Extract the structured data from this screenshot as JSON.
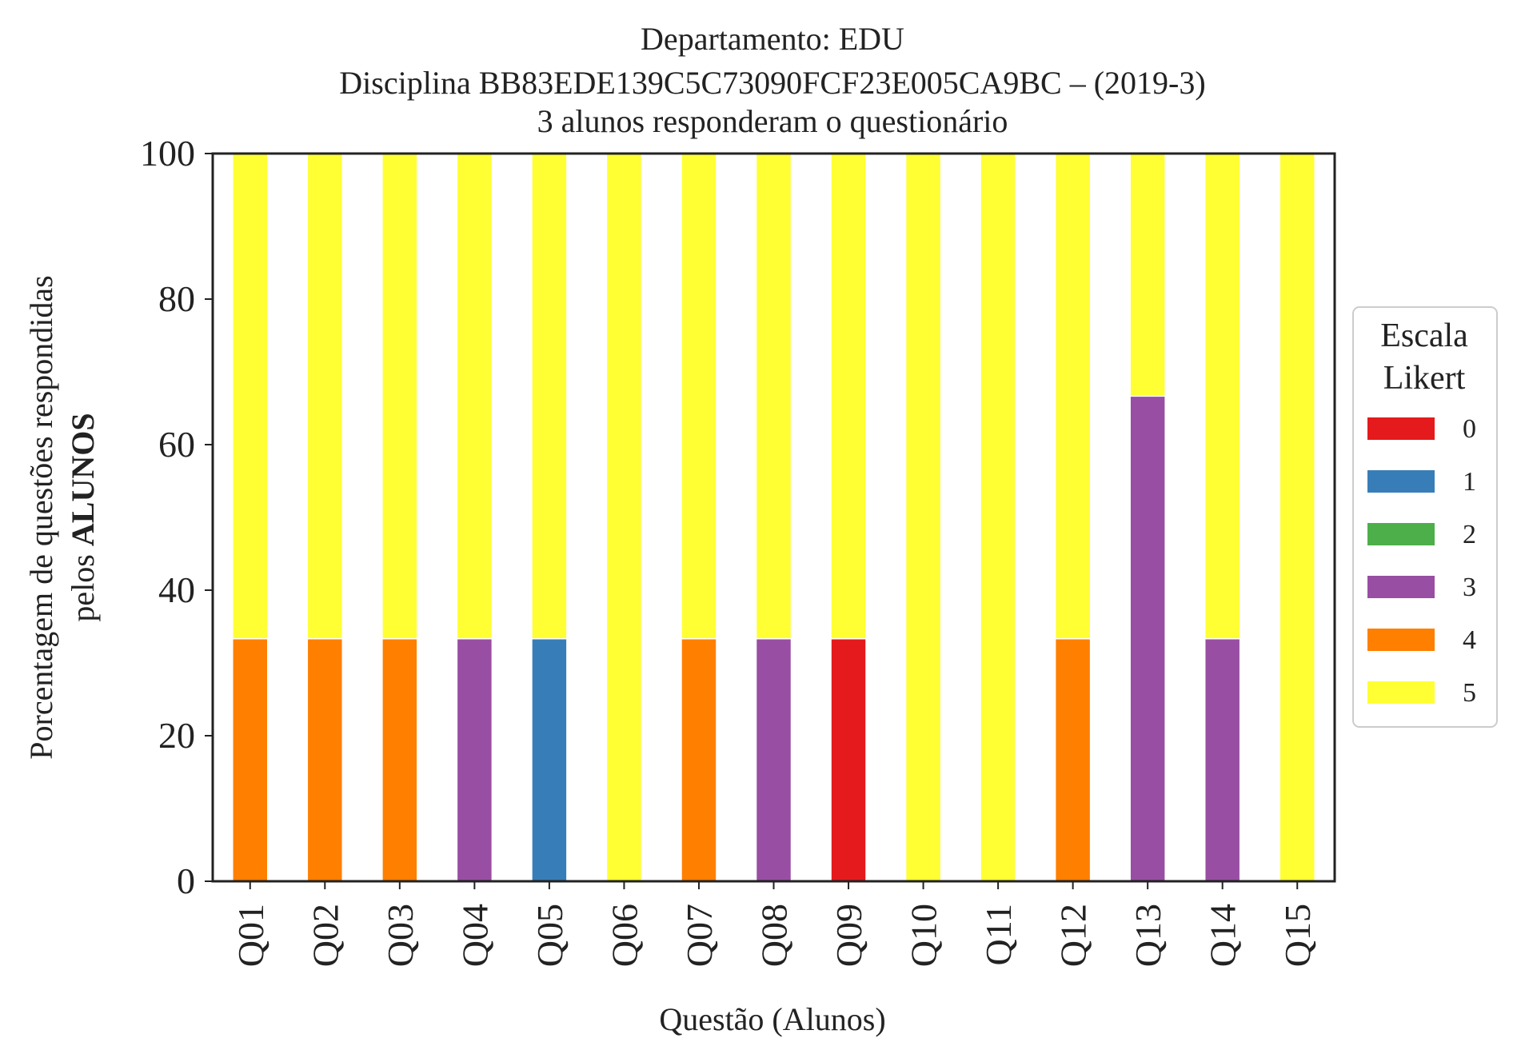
{
  "chart_data": {
    "type": "bar",
    "stacked": true,
    "title": [
      "Departamento: EDU",
      "Disciplina BB83EDE139C5C73090FCF23E005CA9BC – (2019-3)",
      "3 alunos responderam o questionário"
    ],
    "xlabel": "Questão (Alunos)",
    "ylabel": {
      "line1": "Porcentagem de questões respondidas",
      "line2_prefix": "pelos ",
      "line2_bold": "ALUNOS"
    },
    "ylim": [
      0,
      100
    ],
    "yticks": [
      "0",
      "20",
      "40",
      "60",
      "80",
      "100"
    ],
    "grid": false,
    "categories": [
      "Q01",
      "Q02",
      "Q03",
      "Q04",
      "Q05",
      "Q06",
      "Q07",
      "Q08",
      "Q09",
      "Q10",
      "Q11",
      "Q12",
      "Q13",
      "Q14",
      "Q15"
    ],
    "legend": {
      "title": [
        "Escala",
        "Likert"
      ],
      "placement": "right"
    },
    "series": [
      {
        "name": "0",
        "color": "#e41a1c",
        "values": [
          0,
          0,
          0,
          0,
          0,
          0,
          0,
          0,
          33.33,
          0,
          0,
          0,
          0,
          0,
          0
        ]
      },
      {
        "name": "1",
        "color": "#377eb8",
        "values": [
          0,
          0,
          0,
          0,
          33.33,
          0,
          0,
          0,
          0,
          0,
          0,
          0,
          0,
          0,
          0
        ]
      },
      {
        "name": "2",
        "color": "#4daf4a",
        "values": [
          0,
          0,
          0,
          0,
          0,
          0,
          0,
          0,
          0,
          0,
          0,
          0,
          0,
          0,
          0
        ]
      },
      {
        "name": "3",
        "color": "#984ea3",
        "values": [
          0,
          0,
          0,
          33.33,
          0,
          0,
          0,
          33.33,
          0,
          0,
          0,
          0,
          66.67,
          33.33,
          0
        ]
      },
      {
        "name": "4",
        "color": "#ff7f00",
        "values": [
          33.33,
          33.33,
          33.33,
          0,
          0,
          0,
          33.33,
          0,
          0,
          0,
          0,
          33.33,
          0,
          0,
          0
        ]
      },
      {
        "name": "5",
        "color": "#ffff33",
        "values": [
          66.67,
          66.67,
          66.67,
          66.67,
          66.67,
          100,
          66.67,
          66.67,
          66.67,
          100,
          100,
          66.67,
          33.33,
          66.67,
          100
        ]
      }
    ]
  }
}
